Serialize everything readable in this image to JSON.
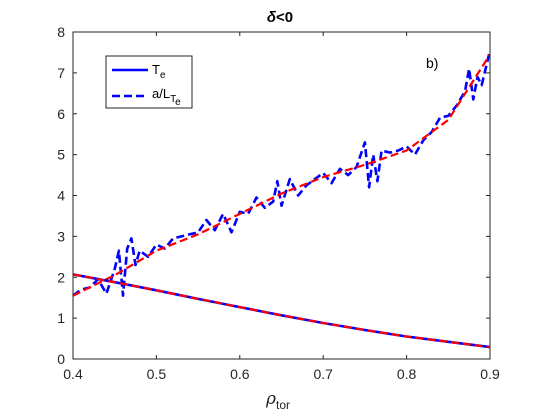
{
  "chart_data": {
    "type": "line",
    "title_symbol": "δ",
    "title_rest": "<0",
    "annotation": "b)",
    "xlabel_symbol": "ρ",
    "xlabel_sub": "tor",
    "xlim": [
      0.4,
      0.9
    ],
    "ylim": [
      0,
      8
    ],
    "xticks": [
      "0.4",
      "0.5",
      "0.6",
      "0.7",
      "0.8",
      "0.9"
    ],
    "yticks": [
      "0",
      "1",
      "2",
      "3",
      "4",
      "5",
      "6",
      "7",
      "8"
    ],
    "grid": false,
    "legend_position": "top-left",
    "legend": [
      {
        "label_main": "T",
        "label_sub": "e",
        "style": "solid",
        "color": "#0000ff"
      },
      {
        "label_main": "a/L",
        "label_sub": "T",
        "label_subsub": "e",
        "style": "dashed",
        "color": "#0000ff"
      }
    ],
    "series": [
      {
        "name": "T_e",
        "style": "solid",
        "color": "#0000ff",
        "x": [
          0.4,
          0.45,
          0.5,
          0.55,
          0.6,
          0.65,
          0.7,
          0.75,
          0.8,
          0.85,
          0.9
        ],
        "y": [
          2.07,
          1.88,
          1.68,
          1.47,
          1.27,
          1.07,
          0.88,
          0.71,
          0.55,
          0.42,
          0.29
        ]
      },
      {
        "name": "T_e fit",
        "style": "dashed",
        "color": "#ff0000",
        "x": [
          0.4,
          0.45,
          0.5,
          0.55,
          0.6,
          0.65,
          0.7,
          0.75,
          0.8,
          0.85,
          0.9
        ],
        "y": [
          2.07,
          1.88,
          1.68,
          1.47,
          1.27,
          1.07,
          0.88,
          0.71,
          0.55,
          0.42,
          0.29
        ]
      },
      {
        "name": "a/L_Te",
        "style": "dashed",
        "color": "#0000ff",
        "x": [
          0.4,
          0.41,
          0.42,
          0.43,
          0.44,
          0.45,
          0.455,
          0.46,
          0.465,
          0.47,
          0.475,
          0.48,
          0.49,
          0.5,
          0.51,
          0.52,
          0.53,
          0.54,
          0.55,
          0.56,
          0.57,
          0.58,
          0.59,
          0.6,
          0.61,
          0.62,
          0.63,
          0.64,
          0.645,
          0.65,
          0.66,
          0.67,
          0.68,
          0.69,
          0.7,
          0.71,
          0.72,
          0.73,
          0.74,
          0.75,
          0.755,
          0.76,
          0.765,
          0.77,
          0.78,
          0.79,
          0.8,
          0.81,
          0.82,
          0.83,
          0.84,
          0.85,
          0.86,
          0.87,
          0.875,
          0.88,
          0.885,
          0.89,
          0.9
        ],
        "y": [
          1.55,
          1.7,
          1.75,
          1.95,
          1.6,
          2.2,
          2.65,
          1.55,
          2.7,
          2.95,
          2.3,
          2.65,
          2.5,
          2.8,
          2.7,
          2.95,
          3.0,
          3.05,
          3.1,
          3.4,
          3.15,
          3.55,
          3.1,
          3.6,
          3.55,
          3.95,
          3.7,
          3.85,
          4.35,
          3.75,
          4.4,
          4.0,
          4.25,
          4.4,
          4.55,
          4.3,
          4.65,
          4.5,
          4.7,
          5.3,
          4.2,
          5.0,
          4.35,
          5.1,
          5.05,
          5.1,
          5.2,
          5.0,
          5.35,
          5.55,
          5.9,
          5.95,
          6.2,
          6.55,
          7.1,
          6.35,
          6.9,
          6.7,
          7.55
        ]
      },
      {
        "name": "a/L_Te fit",
        "style": "dashed",
        "color": "#ff0000",
        "x": [
          0.4,
          0.45,
          0.5,
          0.55,
          0.6,
          0.65,
          0.7,
          0.75,
          0.8,
          0.85,
          0.9
        ],
        "y": [
          1.55,
          2.05,
          2.65,
          3.05,
          3.55,
          4.05,
          4.45,
          4.75,
          5.1,
          5.85,
          7.45
        ]
      }
    ]
  }
}
